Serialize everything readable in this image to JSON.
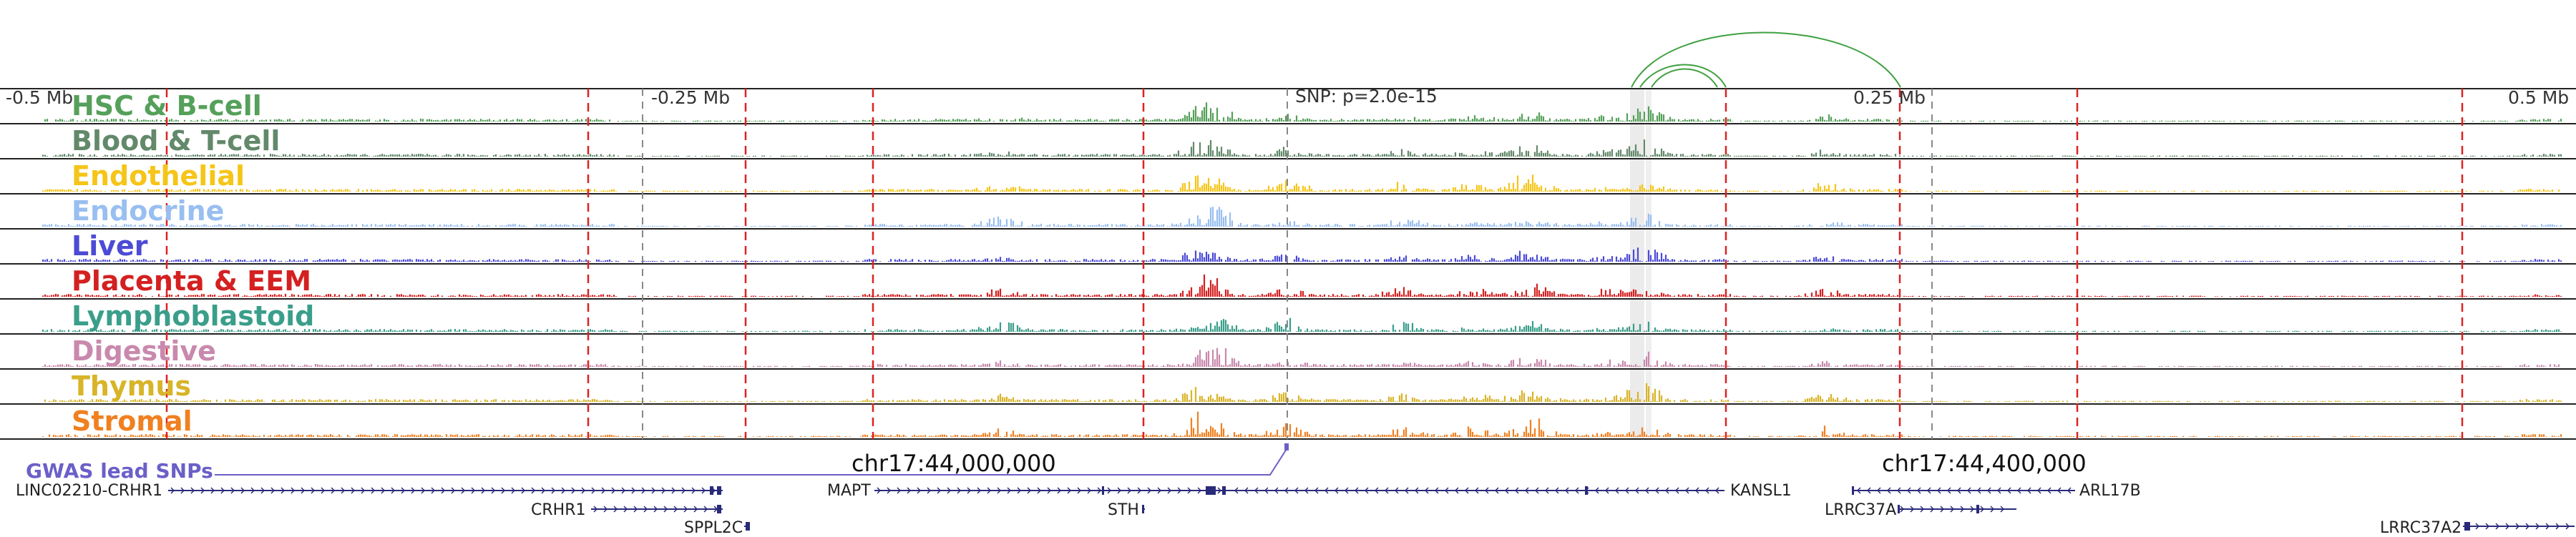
{
  "tracks": [
    {
      "name": "HSC & B-cell",
      "color": "#55a05a"
    },
    {
      "name": "Blood & T-cell",
      "color": "#62896a"
    },
    {
      "name": "Endothelial",
      "color": "#f5c518"
    },
    {
      "name": "Endocrine",
      "color": "#99bff0"
    },
    {
      "name": "Liver",
      "color": "#4c4bd6"
    },
    {
      "name": "Placenta & EEM",
      "color": "#d42020"
    },
    {
      "name": "Lymphoblastoid",
      "color": "#3a9e8a"
    },
    {
      "name": "Digestive",
      "color": "#c989ad"
    },
    {
      "name": "Thymus",
      "color": "#d8b428"
    },
    {
      "name": "Stromal",
      "color": "#f08020"
    }
  ],
  "ruler": {
    "minus_half": "-0.5 Mb",
    "minus_quarter": "-0.25 Mb",
    "plus_quarter": "0.25 Mb",
    "plus_half": "0.5 Mb"
  },
  "snp_label": "SNP: p=2.0e-15",
  "coordinates": {
    "left": "chr17:44,000,000",
    "right": "chr17:44,400,000"
  },
  "gwas": {
    "label": "GWAS lead SNPs",
    "color": "#6b5fc9"
  },
  "genes": {
    "g1": "LINC02210-CRHR1",
    "g2": "CRHR1",
    "g3": "SPPL2C",
    "g4": "MAPT",
    "g5": "STH",
    "g6": "KANSL1",
    "g7": "ARL17B",
    "g8": "LRRC37A",
    "g9": "LRRC37A2"
  },
  "colors": {
    "marker_line": "#dd2222",
    "gene_line": "#2a2a7a",
    "loop_arc": "#3fa040"
  }
}
